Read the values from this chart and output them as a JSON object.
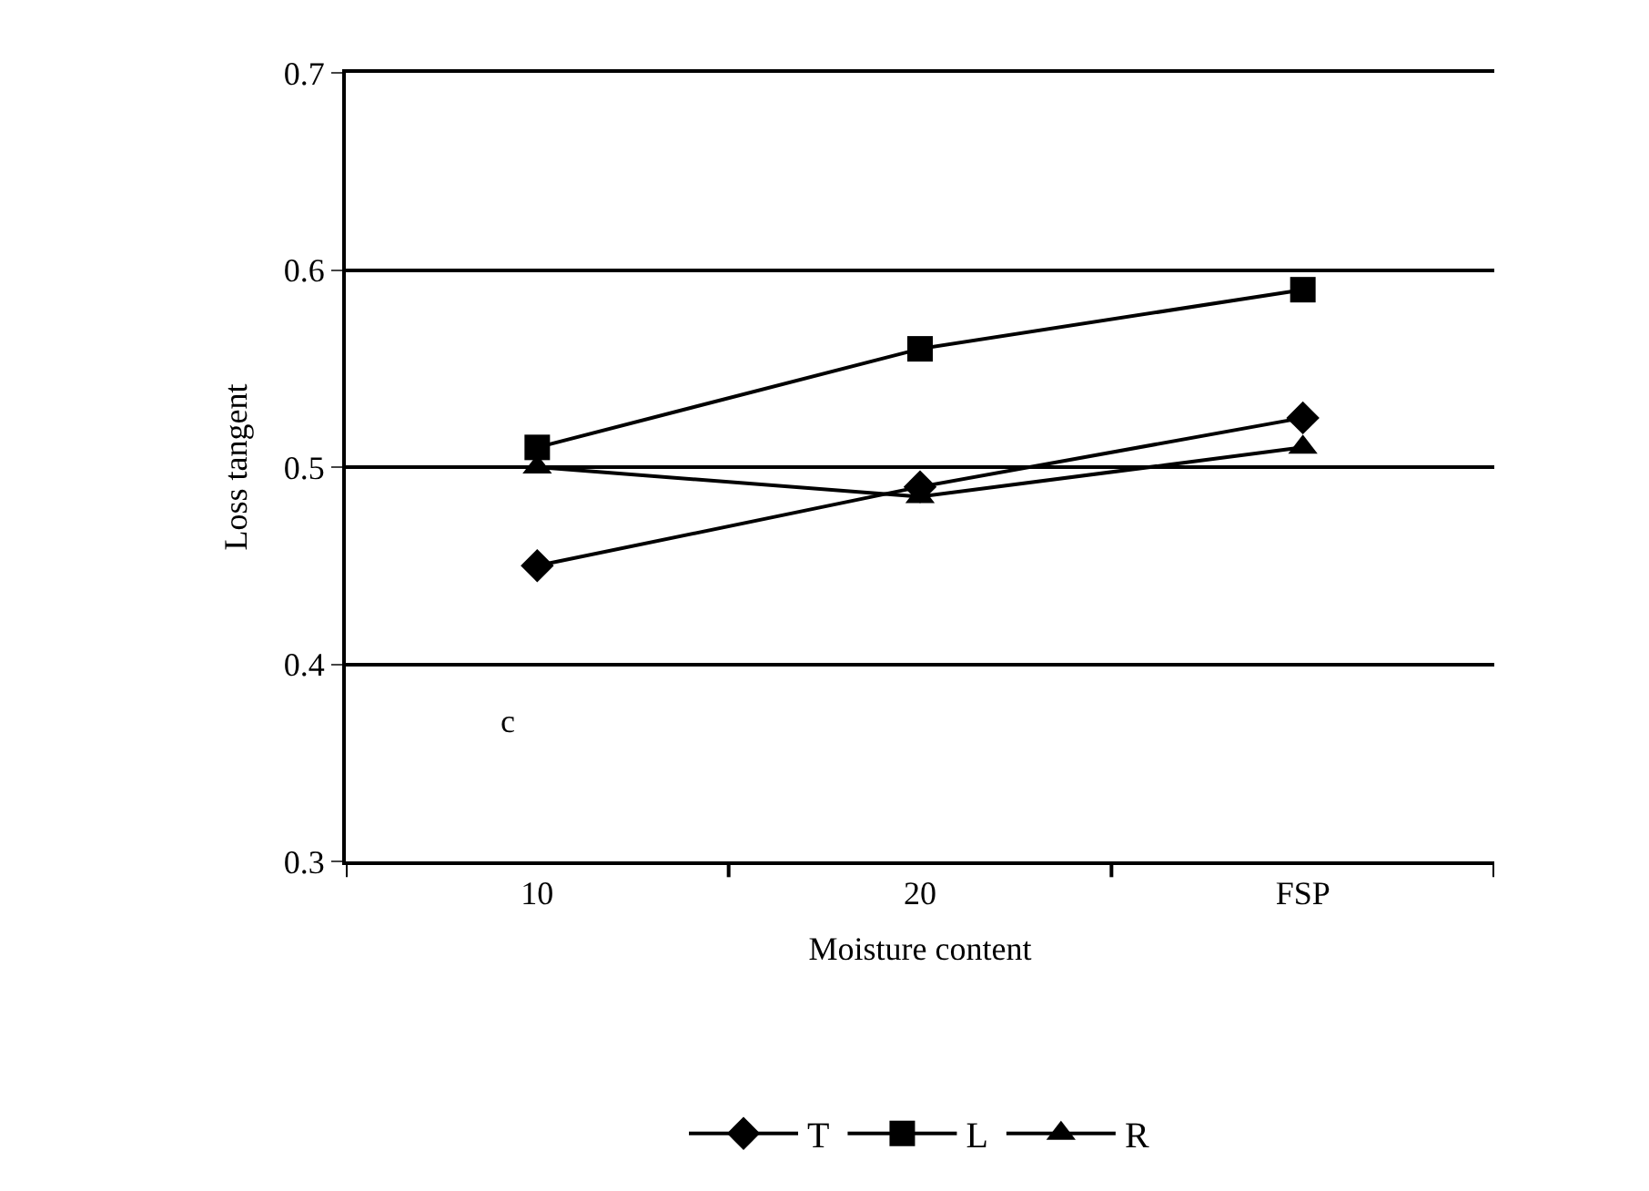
{
  "chart_data": {
    "type": "line",
    "xlabel": "Moisture content",
    "ylabel": "Loss tangent",
    "categories": [
      "10",
      "20",
      "FSP"
    ],
    "series": [
      {
        "name": "T",
        "color": "#000000",
        "marker": "diamond",
        "values": [
          0.45,
          0.49,
          0.525
        ]
      },
      {
        "name": "L",
        "color": "#000000",
        "marker": "square",
        "values": [
          0.51,
          0.56,
          0.59
        ]
      },
      {
        "name": "R",
        "color": "#000000",
        "marker": "triangle",
        "values": [
          0.5,
          0.485,
          0.51
        ]
      }
    ],
    "ylim": [
      0.3,
      0.7
    ],
    "yticks": [
      0.3,
      0.4,
      0.5,
      0.6,
      0.7
    ],
    "grid": "y",
    "legend": "bottom",
    "line_style": "solid",
    "annotations": [
      "c"
    ]
  }
}
